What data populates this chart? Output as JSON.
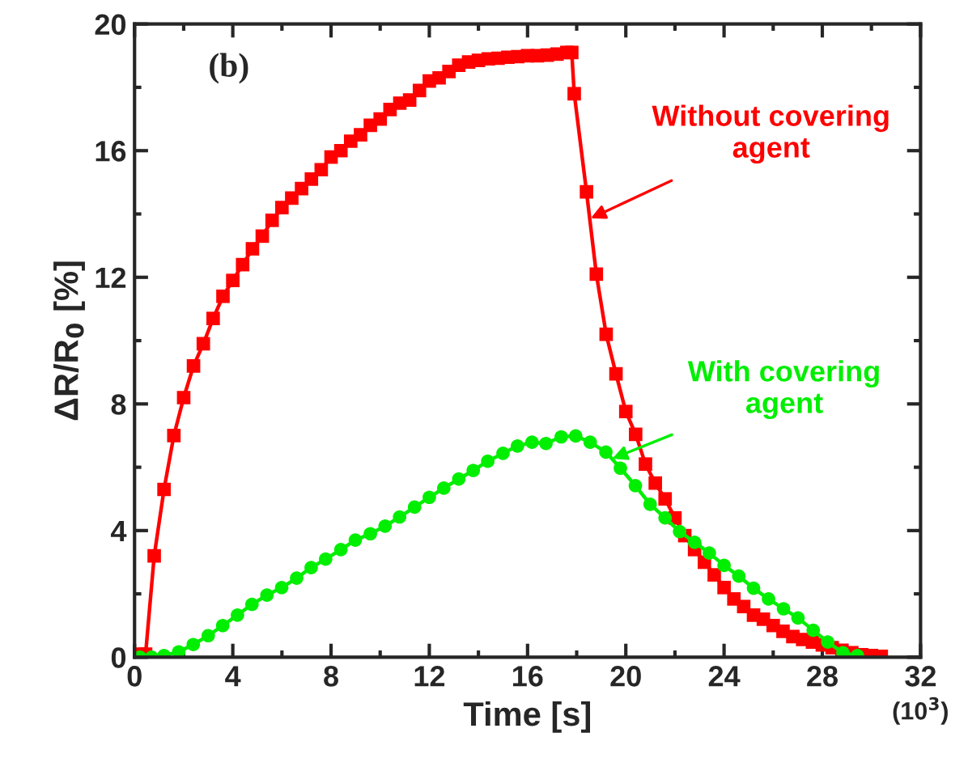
{
  "chart_data": {
    "type": "line",
    "xlabel": "Time [s]",
    "ylabel": "ΔR/R$_{0}$ [%]",
    "xlim": [
      0,
      32
    ],
    "xticks": [
      0,
      4,
      8,
      12,
      16,
      20,
      24,
      28,
      32
    ],
    "ylim": [
      0,
      20
    ],
    "yticks": [
      0,
      4,
      8,
      12,
      16,
      20
    ],
    "grid": false,
    "legend": false,
    "line_style": "solid",
    "series": [
      {
        "color": "#ff0000",
        "marker": "square",
        "x": [
          0.15,
          0.45,
          0.8,
          1.2,
          1.6,
          2.0,
          2.4,
          2.8,
          3.2,
          3.6,
          4.0,
          4.4,
          4.8,
          5.2,
          5.6,
          6.0,
          6.4,
          6.8,
          7.2,
          7.6,
          8.0,
          8.4,
          8.8,
          9.2,
          9.6,
          10.0,
          10.4,
          10.8,
          11.2,
          11.6,
          12.0,
          12.4,
          12.8,
          13.2,
          13.6,
          14.0,
          14.4,
          14.8,
          15.2,
          15.6,
          16.0,
          16.4,
          16.8,
          17.2,
          17.6,
          17.8,
          17.9,
          18.4,
          18.8,
          19.2,
          19.6,
          20.0,
          20.4,
          20.8,
          21.2,
          21.6,
          22.0,
          22.4,
          22.8,
          23.2,
          23.6,
          24.0,
          24.4,
          24.8,
          25.2,
          25.6,
          26.0,
          26.4,
          26.8,
          27.2,
          27.6,
          28.0,
          28.4,
          28.8,
          29.2,
          29.6,
          30.0,
          30.4
        ],
        "values": [
          0.1,
          0.1,
          3.2,
          5.3,
          7.0,
          8.2,
          9.2,
          9.9,
          10.7,
          11.4,
          11.9,
          12.4,
          12.9,
          13.3,
          13.8,
          14.2,
          14.5,
          14.8,
          15.1,
          15.4,
          15.8,
          16.0,
          16.3,
          16.5,
          16.8,
          17.0,
          17.3,
          17.5,
          17.6,
          17.9,
          18.2,
          18.3,
          18.5,
          18.7,
          18.8,
          18.85,
          18.9,
          18.92,
          18.95,
          18.97,
          19.0,
          19.0,
          19.02,
          19.05,
          19.1,
          19.1,
          17.8,
          14.7,
          12.1,
          10.2,
          8.95,
          7.76,
          7.04,
          6.1,
          5.5,
          5.0,
          4.4,
          3.84,
          3.4,
          3.0,
          2.6,
          2.2,
          1.84,
          1.6,
          1.33,
          1.2,
          1.0,
          0.82,
          0.65,
          0.56,
          0.48,
          0.39,
          0.3,
          0.22,
          0.14,
          0.08,
          0.05,
          0.03
        ]
      },
      {
        "color": "#00ee00",
        "marker": "circle",
        "x": [
          0.22,
          0.7,
          1.2,
          1.8,
          2.39,
          3.0,
          3.59,
          4.19,
          4.78,
          5.39,
          5.99,
          6.6,
          7.19,
          7.78,
          8.4,
          8.99,
          9.6,
          10.2,
          10.79,
          11.4,
          12.0,
          12.59,
          13.2,
          13.79,
          14.38,
          15.0,
          15.59,
          16.18,
          16.75,
          17.37,
          17.96,
          18.55,
          19.19,
          19.78,
          20.39,
          20.99,
          21.6,
          22.19,
          22.8,
          23.4,
          24.0,
          24.6,
          25.2,
          25.81,
          26.42,
          27.01,
          27.63,
          28.22,
          28.84,
          29.43
        ],
        "values": [
          0.0,
          0.0,
          0.05,
          0.17,
          0.4,
          0.68,
          1.0,
          1.33,
          1.67,
          1.96,
          2.2,
          2.5,
          2.83,
          3.1,
          3.4,
          3.7,
          3.9,
          4.14,
          4.43,
          4.74,
          5.05,
          5.34,
          5.63,
          5.9,
          6.19,
          6.44,
          6.67,
          6.79,
          6.75,
          6.96,
          6.99,
          6.79,
          6.48,
          5.97,
          5.42,
          4.83,
          4.4,
          3.97,
          3.63,
          3.29,
          2.9,
          2.56,
          2.18,
          1.84,
          1.53,
          1.24,
          0.85,
          0.48,
          0.14,
          0.05
        ]
      }
    ],
    "annotations": [
      "(b)",
      "(10$^{3}$)",
      {
        "text": "Without covering\nagent",
        "x": 18.57,
        "y": 13.86
      },
      {
        "text": "With covering\nagent",
        "x": 19.45,
        "y": 6.27
      }
    ]
  }
}
